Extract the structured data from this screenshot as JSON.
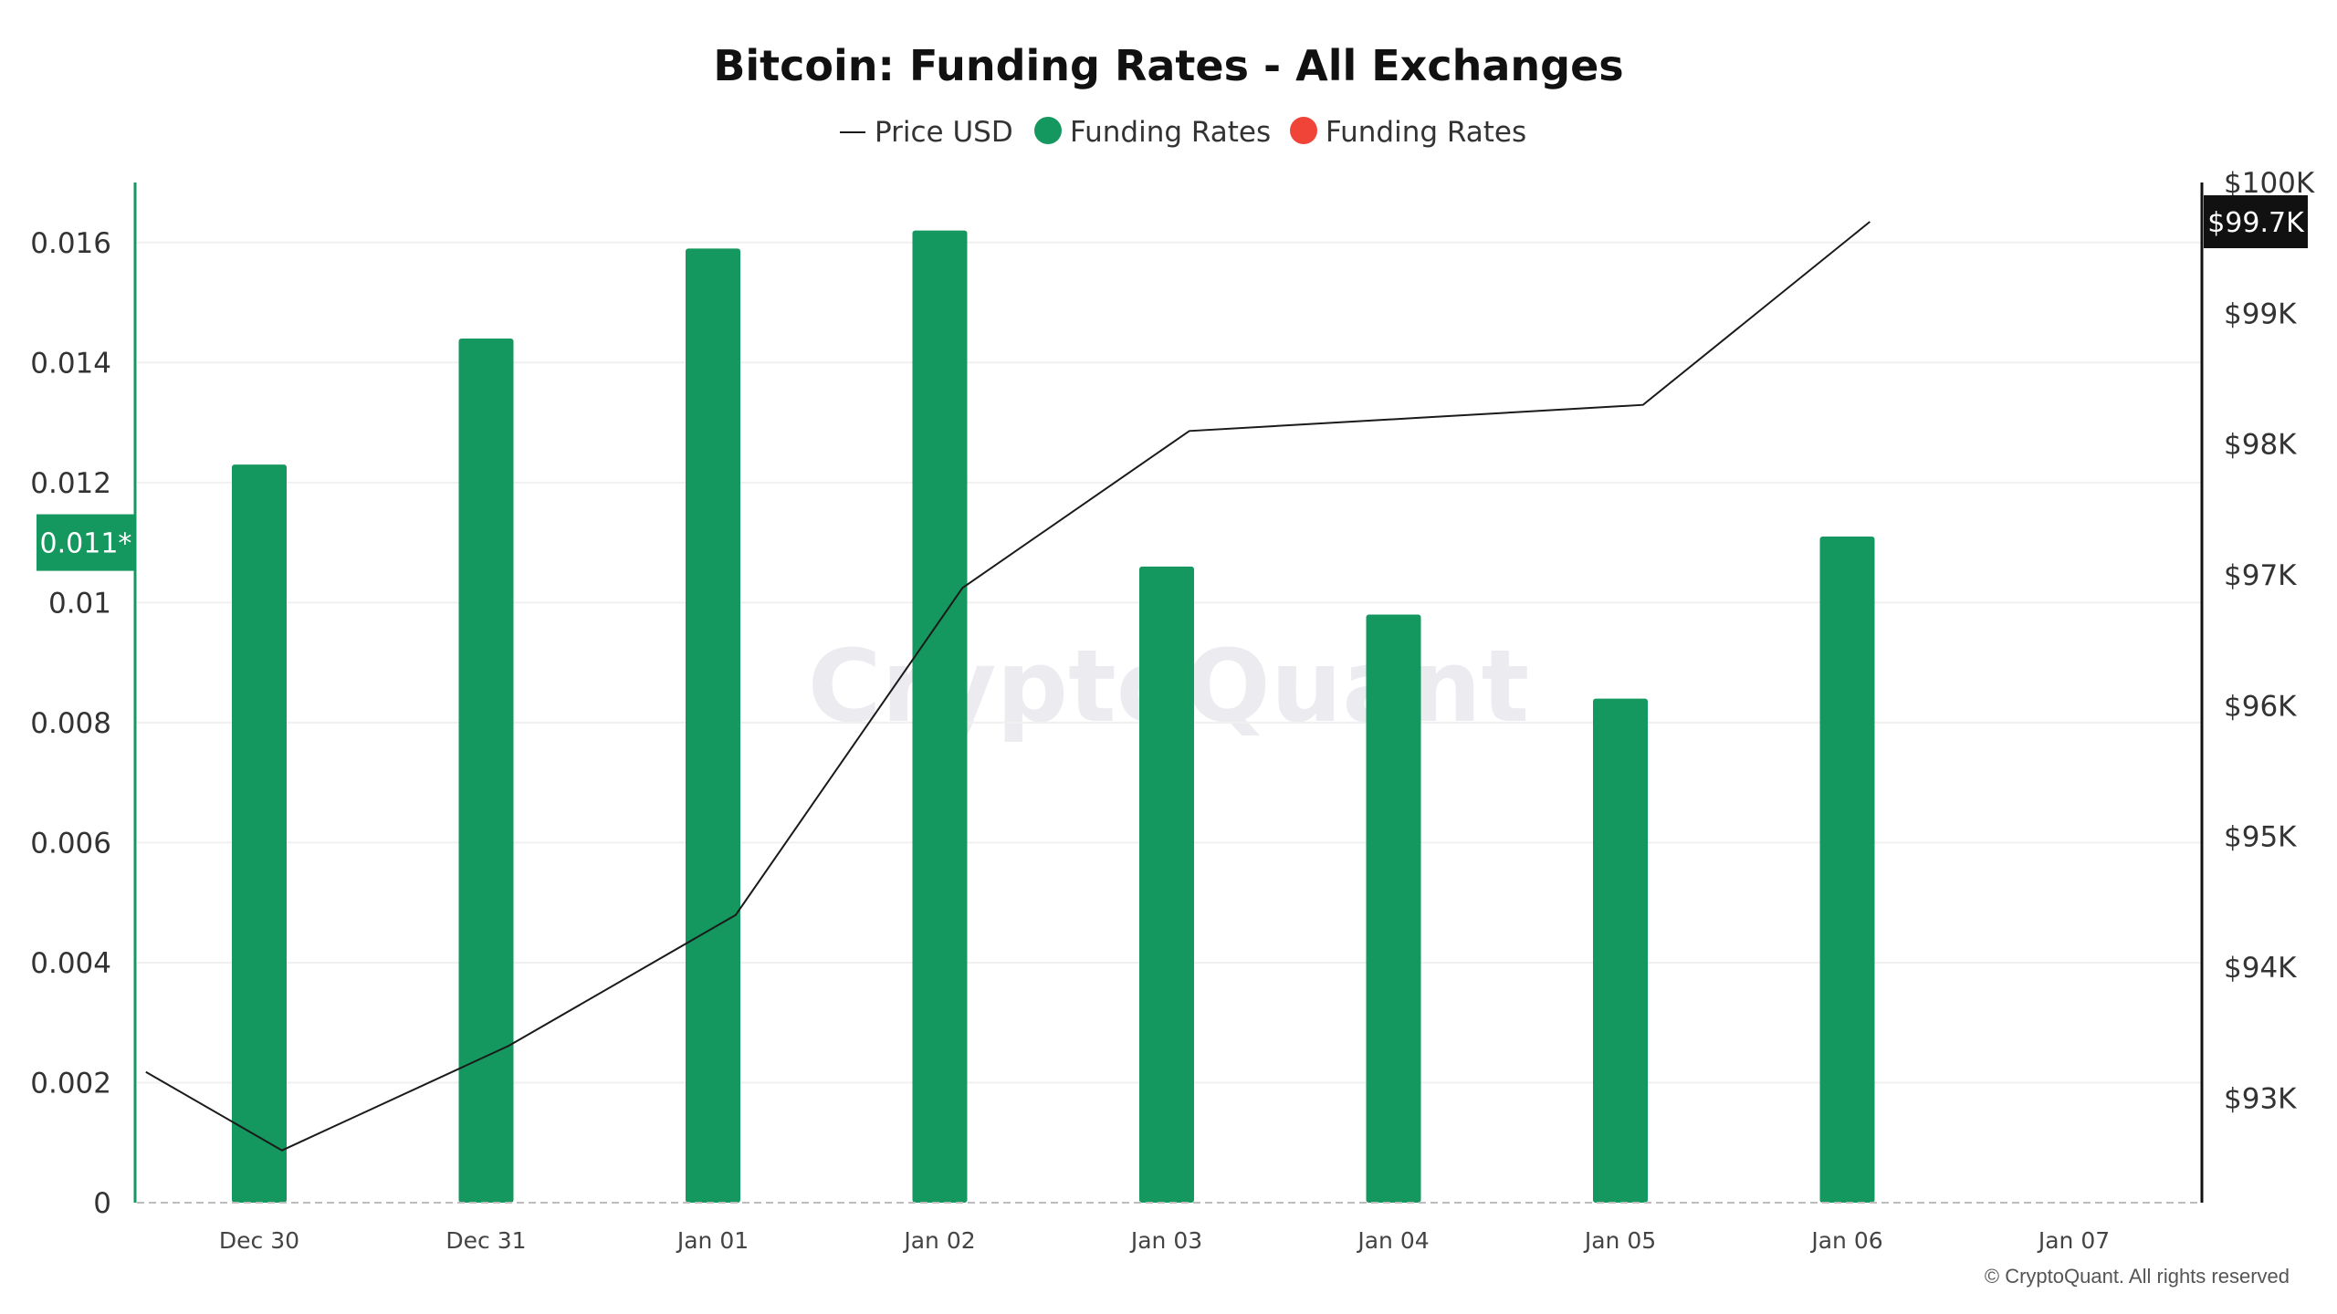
{
  "chart_data": {
    "type": "bar",
    "title": "Bitcoin: Funding Rates - All Exchanges",
    "legend": [
      {
        "label": "Price USD",
        "marker": "line",
        "color": "#1a1a1a"
      },
      {
        "label": "Funding Rates",
        "marker": "dot",
        "color": "#15985f"
      },
      {
        "label": "Funding Rates",
        "marker": "dot",
        "color": "#f04438"
      }
    ],
    "x_tick_labels": [
      "Dec 30",
      "Dec 31",
      "Jan 01",
      "Jan 02",
      "Jan 03",
      "Jan 04",
      "Jan 05",
      "Jan 06",
      "Jan 07"
    ],
    "left_axis": {
      "ylim": [
        0,
        0.017
      ],
      "ticks": [
        0,
        0.002,
        0.004,
        0.006,
        0.008,
        0.01,
        0.012,
        0.014,
        0.016
      ],
      "tick_labels": [
        "0",
        "0.002",
        "0.004",
        "0.006",
        "0.008",
        "0.01",
        "0.012",
        "0.014",
        "0.016"
      ],
      "current_marker": {
        "value": 0.011,
        "label": "0.011*"
      }
    },
    "right_axis": {
      "ylim": [
        92200,
        100000
      ],
      "ticks": [
        93000,
        94000,
        95000,
        96000,
        97000,
        98000,
        99000,
        100000
      ],
      "tick_labels": [
        "$93K",
        "$94K",
        "$95K",
        "$96K",
        "$97K",
        "$98K",
        "$99K",
        "$100K"
      ],
      "current_marker": {
        "value": 99700,
        "label": "$99.7K"
      }
    },
    "series": [
      {
        "name": "Funding Rates",
        "type": "bar",
        "axis": "left",
        "color": "#15985f",
        "categories": [
          "Dec 30",
          "Dec 31",
          "Jan 01",
          "Jan 02",
          "Jan 03",
          "Jan 04",
          "Jan 05",
          "Jan 06"
        ],
        "values": [
          0.0123,
          0.0144,
          0.0159,
          0.0162,
          0.0106,
          0.0098,
          0.0084,
          0.0111
        ]
      },
      {
        "name": "Price USD",
        "type": "line",
        "axis": "right",
        "color": "#1a1a1a",
        "x": [
          -0.5,
          0.1,
          1.1,
          2.1,
          3.1,
          4.1,
          5.1,
          6.1,
          7.1
        ],
        "values": [
          93200,
          92600,
          93400,
          94400,
          96900,
          98100,
          98200,
          98300,
          99700
        ]
      }
    ],
    "watermark": "CryptoQuant",
    "footer": "© CryptoQuant. All rights reserved"
  }
}
